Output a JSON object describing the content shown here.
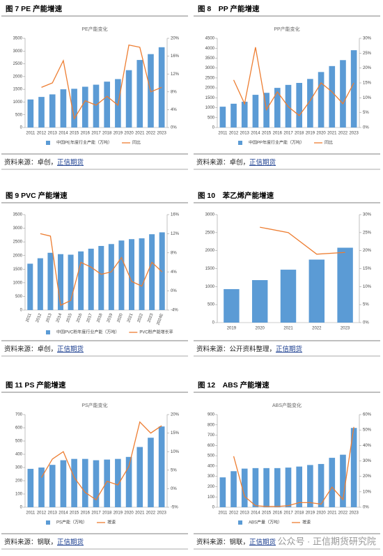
{
  "chart_data": [
    {
      "type": "bar-line",
      "figure": "图 7 PE 产能增速",
      "title": "PE产能变化",
      "categories": [
        "2011",
        "2012",
        "2013",
        "2014",
        "2015",
        "2016",
        "2017",
        "2018",
        "2019",
        "2020",
        "2021",
        "2022",
        "2023"
      ],
      "series": [
        {
          "name": "中国PE年度行业产能（万吨）",
          "color": "#5b9bd5",
          "values": [
            1100,
            1200,
            1300,
            1500,
            1520,
            1600,
            1680,
            1800,
            1900,
            2250,
            2650,
            2880,
            3150
          ]
        },
        {
          "name": "同比",
          "color": "#ed7d31",
          "axis": "y2",
          "values": [
            null,
            9,
            10,
            15,
            2,
            6,
            5,
            7,
            5,
            18.5,
            18,
            8,
            9
          ]
        }
      ],
      "ylim": [
        0,
        3500
      ],
      "yticks": [
        0,
        500,
        1000,
        1500,
        2000,
        2500,
        3000,
        3500
      ],
      "y2lim": [
        0,
        20
      ],
      "y2ticks": [
        {
          "value": 0,
          "label": "0%"
        },
        {
          "value": 4,
          "label": "4%"
        },
        {
          "value": 8,
          "label": "8%"
        },
        {
          "value": 12,
          "label": "12%"
        },
        {
          "value": 16,
          "label": "16%"
        },
        {
          "value": 20,
          "label": "20%"
        }
      ],
      "source": "资料来源：卓创，",
      "source_link": "正信期货"
    },
    {
      "type": "bar-line",
      "figure": "图 8　PP 产能增速",
      "title": "PP产能变化",
      "categories": [
        "2011",
        "2012",
        "2013",
        "2014",
        "2015",
        "2016",
        "2017",
        "2018",
        "2019",
        "2020",
        "2021",
        "2022",
        "2023"
      ],
      "series": [
        {
          "name": "中国PP年度行业产能（万吨）",
          "color": "#5b9bd5",
          "values": [
            1050,
            1200,
            1300,
            1650,
            1750,
            2000,
            2150,
            2250,
            2450,
            2800,
            3100,
            3400,
            3900
          ]
        },
        {
          "name": "同比",
          "color": "#ed7d31",
          "axis": "y2",
          "values": [
            null,
            16,
            8,
            27,
            6,
            12,
            7,
            4,
            9,
            15,
            12,
            8,
            15
          ]
        }
      ],
      "ylim": [
        0,
        4500
      ],
      "yticks": [
        0,
        500,
        1000,
        1500,
        2000,
        2500,
        3000,
        3500,
        4000,
        4500
      ],
      "y2lim": [
        0,
        30
      ],
      "y2ticks": [
        {
          "value": 0,
          "label": "0%"
        },
        {
          "value": 5,
          "label": "5%"
        },
        {
          "value": 10,
          "label": "10%"
        },
        {
          "value": 15,
          "label": "15%"
        },
        {
          "value": 20,
          "label": "20%"
        },
        {
          "value": 25,
          "label": "25%"
        },
        {
          "value": 30,
          "label": "30%"
        }
      ],
      "source": "资料来源：卓创，",
      "source_link": "正信期货"
    },
    {
      "type": "bar-line",
      "figure": "图 9 PVC 产能增速",
      "rotate": true,
      "categories": [
        "2011",
        "2012",
        "2013",
        "2014",
        "2015",
        "2016",
        "2017",
        "2018",
        "2019",
        "2020",
        "2021",
        "2022",
        "2023",
        "2024E"
      ],
      "series": [
        {
          "name": "中国PVC粉年度行业产能（万吨）",
          "color": "#5b9bd5",
          "values": [
            1700,
            1900,
            2100,
            2050,
            2030,
            2150,
            2250,
            2350,
            2420,
            2550,
            2600,
            2630,
            2780,
            2850
          ]
        },
        {
          "name": "PVC粉产能增长率",
          "color": "#ed7d31",
          "axis": "y2",
          "values": [
            null,
            12,
            11.5,
            -3,
            -2,
            6,
            5,
            3.5,
            4,
            7,
            2,
            1,
            6,
            4
          ]
        }
      ],
      "ylim": [
        0,
        3500
      ],
      "yticks": [
        0,
        500,
        1000,
        1500,
        2000,
        2500,
        3000,
        3500
      ],
      "y2lim": [
        -4,
        16
      ],
      "y2ticks": [
        {
          "value": -4,
          "label": "-4%"
        },
        {
          "value": 0,
          "label": "0%"
        },
        {
          "value": 4,
          "label": "4%"
        },
        {
          "value": 8,
          "label": "8%"
        },
        {
          "value": 12,
          "label": "12%"
        },
        {
          "value": 16,
          "label": "16%"
        }
      ],
      "source": "资料来源：卓创，",
      "source_link": "正信期货"
    },
    {
      "type": "bar-line",
      "figure": "图 10　苯乙烯产能增速",
      "categories": [
        "2019",
        "2020",
        "2021",
        "2022",
        "2023"
      ],
      "series": [
        {
          "color": "#5b9bd5",
          "values": [
            930,
            1180,
            1470,
            1750,
            2080
          ]
        },
        {
          "color": "#ed7d31",
          "axis": "y2",
          "values": [
            null,
            26.5,
            25,
            19,
            19.5
          ]
        }
      ],
      "ylim": [
        0,
        3000
      ],
      "yticks": [
        0,
        500,
        1000,
        1500,
        2000,
        2500,
        3000
      ],
      "y2lim": [
        0,
        30
      ],
      "y2ticks": [
        {
          "value": 0,
          "label": "0%"
        },
        {
          "value": 5,
          "label": "5%"
        },
        {
          "value": 10,
          "label": "10%"
        },
        {
          "value": 15,
          "label": "15%"
        },
        {
          "value": 20,
          "label": "20%"
        },
        {
          "value": 25,
          "label": "25%"
        },
        {
          "value": 30,
          "label": "30%"
        }
      ],
      "source": "资料来源：公开资料整理，",
      "source_link": "正信期货"
    },
    {
      "type": "bar-line",
      "figure": "图 11 PS 产能增速",
      "title": "PS产能变化",
      "categories": [
        "2011",
        "2012",
        "2013",
        "2014",
        "2015",
        "2016",
        "2017",
        "2018",
        "2019",
        "2020",
        "2021",
        "2022",
        "2023"
      ],
      "series": [
        {
          "name": "PS产能（万吨）",
          "color": "#5b9bd5",
          "values": [
            290,
            300,
            320,
            355,
            365,
            365,
            355,
            360,
            365,
            380,
            455,
            525,
            610
          ]
        },
        {
          "name": "增速",
          "color": "#ed7d31",
          "axis": "y2",
          "values": [
            null,
            3,
            8,
            10,
            3,
            -1,
            -3,
            2,
            1,
            6,
            18,
            15,
            17
          ]
        }
      ],
      "ylim": [
        0,
        700
      ],
      "yticks": [
        0,
        100,
        200,
        300,
        400,
        500,
        600,
        700
      ],
      "y2lim": [
        -5,
        20
      ],
      "y2ticks": [
        {
          "value": -5,
          "label": "-5%"
        },
        {
          "value": 0,
          "label": "0%"
        },
        {
          "value": 5,
          "label": "5%"
        },
        {
          "value": 10,
          "label": "10%"
        },
        {
          "value": 15,
          "label": "15%"
        },
        {
          "value": 20,
          "label": "20%"
        }
      ],
      "source": "资料来源：钢联，",
      "source_link": "正信期货"
    },
    {
      "type": "bar-line",
      "figure": "图 12　ABS 产能增速",
      "title": "ABS产能变化",
      "categories": [
        "2011",
        "2012",
        "2013",
        "2014",
        "2015",
        "2016",
        "2017",
        "2018",
        "2019",
        "2020",
        "2021",
        "2022",
        "2023"
      ],
      "series": [
        {
          "name": "ABS产量（万吨）",
          "color": "#5b9bd5",
          "values": [
            290,
            350,
            375,
            380,
            380,
            380,
            385,
            395,
            410,
            420,
            480,
            510,
            770
          ]
        },
        {
          "name": "增速",
          "color": "#ed7d31",
          "axis": "y2",
          "values": [
            null,
            33,
            7,
            1,
            0.5,
            0.5,
            1,
            3,
            3,
            2,
            13,
            5,
            52
          ]
        }
      ],
      "ylim": [
        0,
        900
      ],
      "yticks": [
        0,
        100,
        200,
        300,
        400,
        500,
        600,
        700,
        800,
        900
      ],
      "y2lim": [
        0,
        60
      ],
      "y2ticks": [
        {
          "value": 0,
          "label": "0%"
        },
        {
          "value": 10,
          "label": "10%"
        },
        {
          "value": 20,
          "label": "20%"
        },
        {
          "value": 30,
          "label": "30%"
        },
        {
          "value": 40,
          "label": "40%"
        },
        {
          "value": 50,
          "label": "50%"
        },
        {
          "value": 60,
          "label": "60%"
        }
      ],
      "source": "资料来源：钢联，",
      "source_link": "正信期货"
    }
  ],
  "watermark": "公众号 · 正信期货研究院"
}
